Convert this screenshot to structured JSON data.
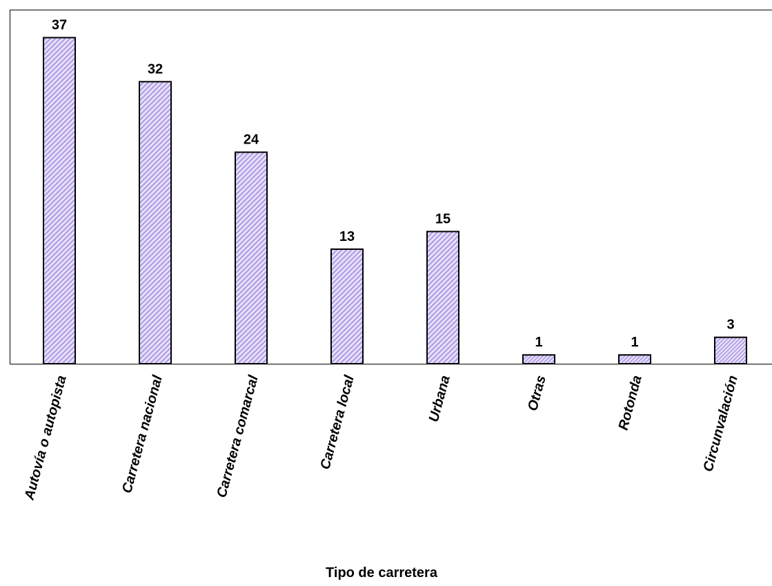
{
  "chart_data": {
    "type": "bar",
    "title": "",
    "xlabel": "Tipo de carretera",
    "ylabel": "",
    "categories": [
      "Autovía o autopista",
      "Carretera nacional",
      "Carretera comarcal",
      "Carretera local",
      "Urbana",
      "Otras",
      "Rotonda",
      "Circunvalación"
    ],
    "values": [
      37,
      32,
      24,
      13,
      15,
      1,
      1,
      3
    ],
    "ylim": [
      0,
      40
    ],
    "grid": false,
    "legend": "none",
    "bar_fill_pattern": "diagonal-hatch",
    "colors": {
      "bar_hatch": "#b3a2e6",
      "bar_hatch_light": "#ece6fb",
      "bar_outline": "#000000",
      "axis": "#000000",
      "background": "#ffffff"
    }
  }
}
